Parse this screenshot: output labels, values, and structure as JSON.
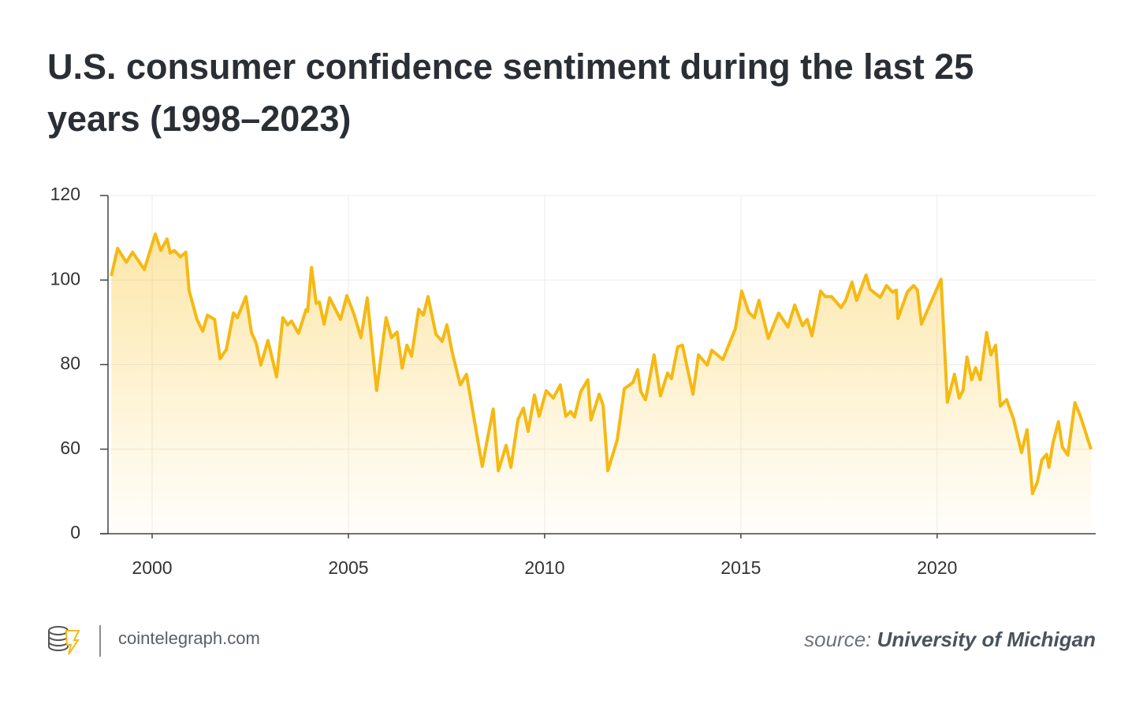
{
  "chart_data": {
    "type": "line",
    "title": "U.S. consumer confidence sentiment during the last 25 years (1998–2023)",
    "site": "cointelegraph.com",
    "source_label": "source:",
    "source": "University of Michigan",
    "color": "#f5b913",
    "grid": true,
    "xlim": [
      1998.875,
      2024.04
    ],
    "xticks": [
      2000,
      2005,
      2010,
      2015,
      2020
    ],
    "ylim": [
      40,
      120
    ],
    "yticks": [
      {
        "value": 40,
        "label": "0"
      },
      60,
      80,
      100,
      120
    ],
    "x": [
      1998.96,
      1999.12,
      1999.34,
      1999.5,
      1999.8,
      2000.08,
      2000.22,
      2000.38,
      2000.46,
      2000.56,
      2000.72,
      2000.86,
      2000.94,
      2001.14,
      2001.29,
      2001.41,
      2001.59,
      2001.73,
      2001.89,
      2002.07,
      2002.17,
      2002.39,
      2002.53,
      2002.65,
      2002.77,
      2002.95,
      2003.17,
      2003.33,
      2003.45,
      2003.55,
      2003.73,
      2003.92,
      2003.96,
      2004.06,
      2004.18,
      2004.26,
      2004.38,
      2004.52,
      2004.8,
      2004.96,
      2005.14,
      2005.32,
      2005.48,
      2005.72,
      2005.96,
      2006.1,
      2006.24,
      2006.37,
      2006.49,
      2006.61,
      2006.79,
      2006.91,
      2007.03,
      2007.23,
      2007.39,
      2007.51,
      2007.65,
      2007.85,
      2008.01,
      2008.41,
      2008.53,
      2008.69,
      2008.82,
      2009.02,
      2009.14,
      2009.32,
      2009.46,
      2009.58,
      2009.74,
      2009.86,
      2010.04,
      2010.22,
      2010.4,
      2010.54,
      2010.66,
      2010.76,
      2010.92,
      2011.1,
      2011.18,
      2011.39,
      2011.49,
      2011.61,
      2011.85,
      2012.03,
      2012.25,
      2012.37,
      2012.45,
      2012.57,
      2012.79,
      2012.95,
      2013.13,
      2013.23,
      2013.39,
      2013.51,
      2013.78,
      2013.92,
      2014.14,
      2014.26,
      2014.54,
      2014.86,
      2015.02,
      2015.2,
      2015.34,
      2015.46,
      2015.7,
      2015.96,
      2016.2,
      2016.37,
      2016.57,
      2016.69,
      2016.81,
      2017.03,
      2017.15,
      2017.31,
      2017.55,
      2017.67,
      2017.83,
      2017.95,
      2018.19,
      2018.29,
      2018.55,
      2018.71,
      2018.86,
      2018.96,
      2019.0,
      2019.24,
      2019.4,
      2019.5,
      2019.6,
      2020.1,
      2020.26,
      2020.44,
      2020.56,
      2020.66,
      2020.76,
      2020.88,
      2020.98,
      2021.1,
      2021.26,
      2021.37,
      2021.49,
      2021.61,
      2021.77,
      2021.95,
      2022.15,
      2022.29,
      2022.43,
      2022.55,
      2022.67,
      2022.79,
      2022.85,
      2022.95,
      2023.09,
      2023.19,
      2023.33,
      2023.51,
      2023.65,
      2023.92
    ],
    "values": [
      101,
      107.5,
      104.2,
      106.6,
      102.5,
      110.9,
      107,
      109.7,
      106.4,
      107,
      105.5,
      106.6,
      97.6,
      90.7,
      87.9,
      91.7,
      90.7,
      81.4,
      83.6,
      92.2,
      91.1,
      96.1,
      87.6,
      85.1,
      79.9,
      85.7,
      77.1,
      91.1,
      89.4,
      90.3,
      87.4,
      93,
      92.6,
      103,
      94.5,
      94.8,
      89.6,
      95.8,
      90.7,
      96.3,
      92,
      86.4,
      95.8,
      73.9,
      91.1,
      86.4,
      87.7,
      79.2,
      84.6,
      82,
      93.1,
      91.7,
      96.1,
      87.2,
      85.5,
      89.4,
      82.7,
      75.2,
      77.7,
      55.9,
      61.8,
      69.5,
      54.9,
      60.9,
      55.7,
      67,
      69.7,
      64.2,
      72.8,
      67.8,
      73.8,
      72.1,
      75.2,
      67.8,
      68.9,
      67.6,
      73.6,
      76.4,
      66.9,
      73,
      70.4,
      54.9,
      62.2,
      74.3,
      75.8,
      78.8,
      73.6,
      71.7,
      82.3,
      72.6,
      78,
      76.7,
      84.2,
      84.6,
      73,
      82.3,
      79.9,
      83.4,
      81.2,
      88.5,
      97.4,
      92.4,
      91.1,
      95.2,
      86.2,
      92.2,
      88.9,
      94.1,
      89.2,
      90.7,
      86.8,
      97.4,
      96.1,
      96.1,
      93.5,
      95.2,
      99.5,
      95.2,
      101.2,
      97.8,
      95.9,
      98.7,
      97.2,
      97.6,
      90.9,
      97.2,
      98.7,
      97.6,
      89.6,
      100.2,
      71.1,
      77.7,
      72.1,
      73.9,
      81.8,
      76.4,
      79.3,
      76.4,
      87.6,
      82.3,
      84.6,
      70.2,
      71.7,
      67,
      59.2,
      64.6,
      49.5,
      52.1,
      57.5,
      58.8,
      55.7,
      61.4,
      66.5,
      60.5,
      58.6,
      71,
      67.8,
      60
    ]
  }
}
